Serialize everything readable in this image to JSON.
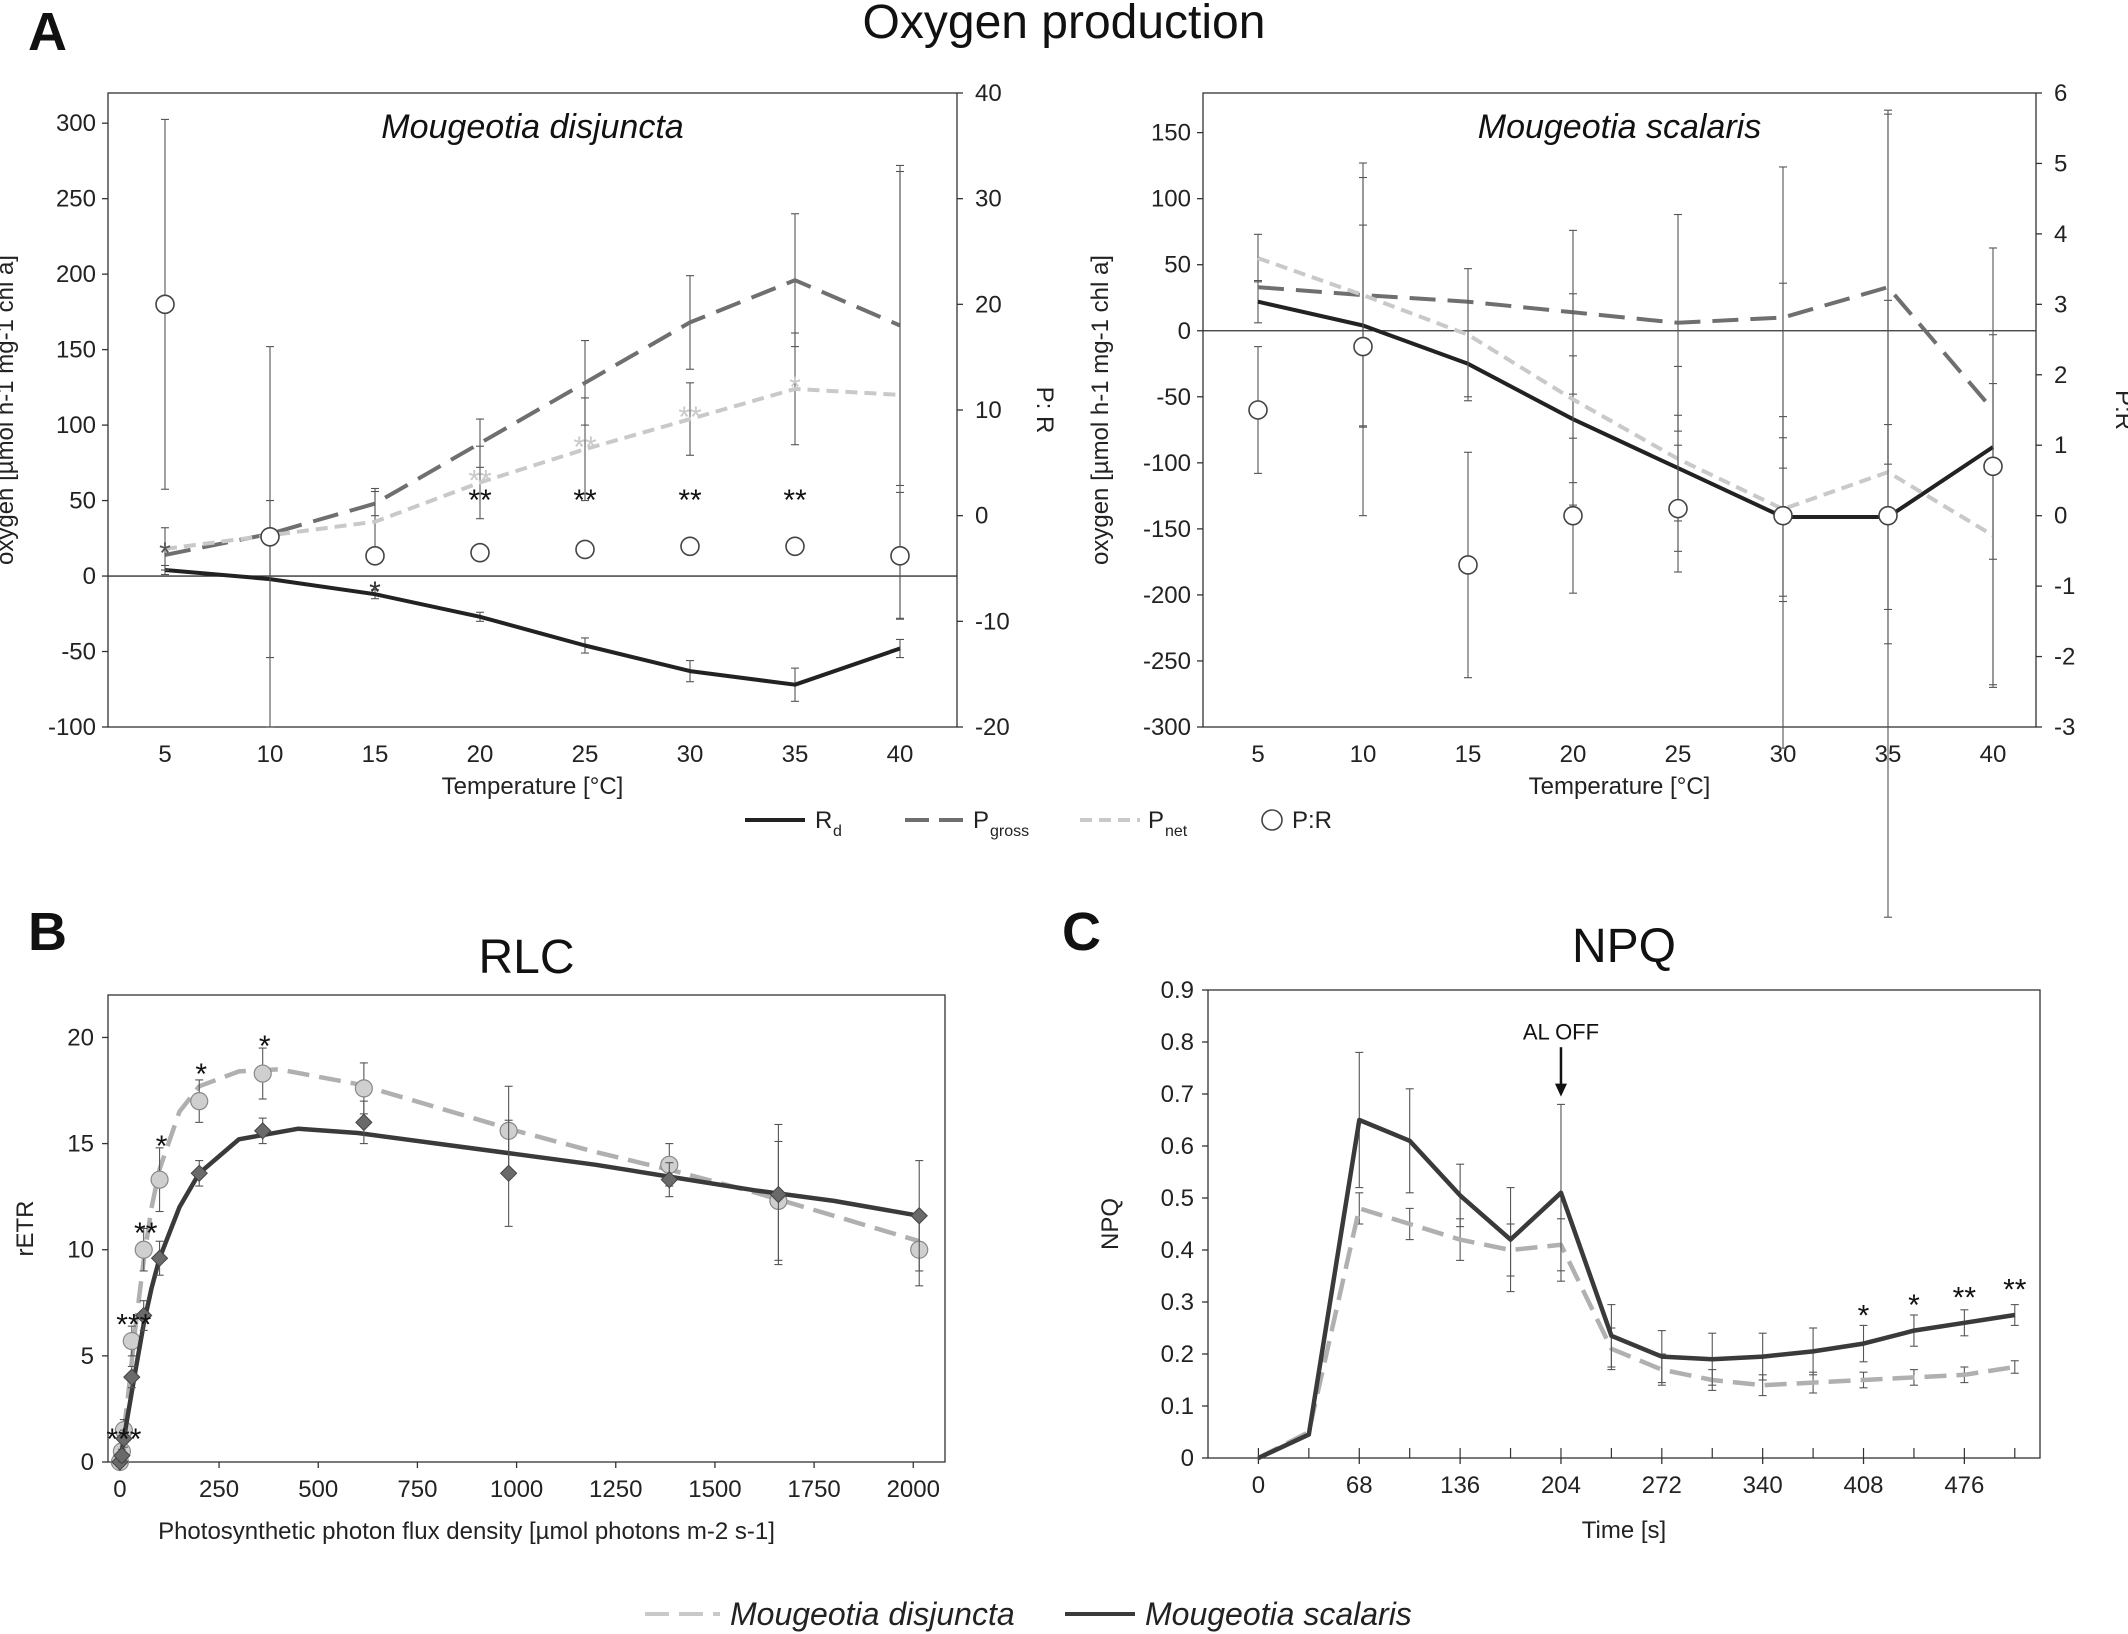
{
  "figure": {
    "panel_a": "A",
    "panel_b": "B",
    "panel_c": "C",
    "title_a": "Oxygen production",
    "legend_a": {
      "rd": "R",
      "rd_sub": "d",
      "pgross": "P",
      "pgross_sub": "gross",
      "pnet": "P",
      "pnet_sub": "net",
      "pr": "P:R"
    },
    "legend_bc": {
      "disjuncta": "Mougeotia disjuncta",
      "scalaris": "Mougeotia scalaris"
    }
  },
  "colors": {
    "rd": "#222222",
    "pgross": "#6f6f6f",
    "pnet": "#c9c9c9",
    "axis": "#333333",
    "disjuncta": "#b0b0b0",
    "scalaris": "#3a3a3a",
    "disjuncta_marker": "#cfcfcf",
    "scalaris_marker": "#6a6a6a"
  },
  "chart_data": [
    {
      "type": "line",
      "subtitle": "Mougeotia disjuncta",
      "xlabel": "Temperature [°C]",
      "ylabel": "oxygen [µmol h-1 mg-1 chl a]",
      "y2label": "P: R",
      "x": [
        5,
        10,
        15,
        20,
        25,
        30,
        35,
        40
      ],
      "ylim": [
        -100,
        320
      ],
      "yticks": [
        -100,
        -50,
        0,
        50,
        100,
        150,
        200,
        250,
        300
      ],
      "y2lim": [
        -20,
        40
      ],
      "y2ticks": [
        -20,
        -10,
        0,
        10,
        20,
        30,
        40
      ],
      "series": [
        {
          "name": "Rd",
          "axis": "left",
          "values": [
            4,
            -2,
            -12,
            -27,
            -46,
            -63,
            -72,
            -48
          ],
          "err": [
            3,
            52,
            3,
            3,
            5,
            7,
            11,
            6
          ]
        },
        {
          "name": "Pgross",
          "axis": "left",
          "values": [
            14,
            28,
            48,
            88,
            128,
            168,
            196,
            166
          ],
          "err": [
            null,
            null,
            8,
            16,
            28,
            31,
            44,
            106
          ]
        },
        {
          "name": "Pnet",
          "axis": "left",
          "values": [
            18,
            27,
            36,
            62,
            84,
            104,
            124,
            120
          ],
          "err": [
            14,
            null,
            22,
            24,
            34,
            24,
            37,
            148
          ]
        },
        {
          "name": "P:R",
          "axis": "right",
          "values": [
            20,
            -2,
            -3.8,
            -3.5,
            -3.2,
            -2.9,
            -2.9,
            -3.8
          ],
          "err": [
            17.5,
            18,
            0,
            0,
            0,
            0,
            0,
            6
          ]
        }
      ],
      "annotations": [
        {
          "x": 5,
          "y": 14,
          "text": "*",
          "color": "#555555"
        },
        {
          "x": 15,
          "y": -12,
          "text": "*",
          "color": "#333333"
        },
        {
          "x": 20,
          "y": 62,
          "text": "**",
          "color": "#c9c9c9"
        },
        {
          "x": 25,
          "y": 84,
          "text": "**",
          "color": "#c9c9c9"
        },
        {
          "x": 30,
          "y": 104,
          "text": "**",
          "color": "#c9c9c9"
        },
        {
          "x": 35,
          "y": 124,
          "text": "*",
          "color": "#c9c9c9"
        },
        {
          "x": 20,
          "y": 49,
          "text": "**",
          "color": "#111111"
        },
        {
          "x": 25,
          "y": 49,
          "text": "**",
          "color": "#111111"
        },
        {
          "x": 30,
          "y": 49,
          "text": "**",
          "color": "#111111"
        },
        {
          "x": 35,
          "y": 49,
          "text": "**",
          "color": "#111111"
        }
      ]
    },
    {
      "type": "line",
      "subtitle": "Mougeotia scalaris",
      "xlabel": "Temperature [°C]",
      "ylabel": "oxygen [µmol h-1 mg-1 chl a]",
      "y2label": "P:R",
      "x": [
        5,
        10,
        15,
        20,
        25,
        30,
        35,
        40
      ],
      "ylim": [
        -300,
        180
      ],
      "yticks": [
        -300,
        -250,
        -200,
        -150,
        -100,
        -50,
        0,
        50,
        100,
        150
      ],
      "y2lim": [
        -3,
        6
      ],
      "y2ticks": [
        -3,
        -2,
        -1,
        0,
        1,
        2,
        3,
        4,
        5,
        6
      ],
      "series": [
        {
          "name": "Rd",
          "axis": "left",
          "values": [
            22,
            4,
            -25,
            -67,
            -104,
            -141,
            -141,
            -88
          ],
          "err": [
            16,
            76,
            25,
            48,
            40,
            60,
            70,
            85
          ]
        },
        {
          "name": "Pgross",
          "axis": "left",
          "values": [
            33,
            27,
            22,
            14,
            6,
            10,
            33,
            -60
          ],
          "err": [
            null,
            null,
            null,
            62,
            82,
            114,
            134,
            null
          ]
        },
        {
          "name": "Pnet",
          "axis": "left",
          "values": [
            55,
            27,
            -3,
            -52,
            -97,
            -135,
            -107,
            -155
          ],
          "err": [
            18,
            100,
            50,
            80,
            70,
            70,
            130,
            115
          ]
        },
        {
          "name": "P:R",
          "axis": "right",
          "values": [
            1.5,
            2.4,
            -0.7,
            0.0,
            0.1,
            0.0,
            0.0,
            0.7
          ],
          "err": [
            0.9,
            2.4,
            1.6,
            1.1,
            0.9,
            3.3,
            5.7,
            3.1
          ]
        }
      ]
    },
    {
      "type": "line",
      "title": "RLC",
      "xlabel": "Photosynthetic photon flux density [µmol photons m-2 s-1]",
      "ylabel": "rETR",
      "xlim": [
        -30,
        2080
      ],
      "xticks": [
        0,
        250,
        500,
        750,
        1000,
        1250,
        1500,
        1750,
        2000
      ],
      "ylim": [
        0,
        22
      ],
      "yticks": [
        0,
        5,
        10,
        15,
        20
      ],
      "series": [
        {
          "name": "Mougeotia disjuncta",
          "x": [
            0,
            5,
            10,
            30,
            60,
            100,
            200,
            360,
            615,
            980,
            1385,
            1660,
            2015
          ],
          "values": [
            0,
            0.5,
            1.5,
            5.7,
            10,
            13.3,
            17,
            18.3,
            17.6,
            15.6,
            14,
            12.3,
            10
          ],
          "err": [
            0,
            0.5,
            0.5,
            0.7,
            1,
            1.5,
            1,
            1.2,
            1.2,
            2.1,
            1,
            2.8,
            1.7
          ],
          "curve": [
            [
              0,
              0
            ],
            [
              20,
              3
            ],
            [
              40,
              6.5
            ],
            [
              60,
              9.5
            ],
            [
              80,
              12
            ],
            [
              100,
              13.8
            ],
            [
              150,
              16.5
            ],
            [
              200,
              17.7
            ],
            [
              300,
              18.4
            ],
            [
              400,
              18.5
            ],
            [
              600,
              17.8
            ],
            [
              800,
              16.7
            ],
            [
              1000,
              15.6
            ],
            [
              1200,
              14.6
            ],
            [
              1400,
              13.7
            ],
            [
              1600,
              12.7
            ],
            [
              1800,
              11.6
            ],
            [
              2015,
              10.4
            ]
          ]
        },
        {
          "name": "Mougeotia scalaris",
          "x": [
            0,
            5,
            10,
            30,
            60,
            100,
            200,
            360,
            615,
            980,
            1385,
            1660,
            2015
          ],
          "values": [
            0,
            0.3,
            1.1,
            4,
            6.9,
            9.6,
            13.6,
            15.6,
            16,
            13.6,
            13.3,
            12.6,
            11.6
          ],
          "err": [
            0,
            0.3,
            0.4,
            0.5,
            0.7,
            0.8,
            0.6,
            0.6,
            1,
            2.5,
            0.8,
            3.3,
            2.6
          ],
          "curve": [
            [
              0,
              0
            ],
            [
              20,
              2.2
            ],
            [
              40,
              4.4
            ],
            [
              60,
              6.5
            ],
            [
              80,
              8.2
            ],
            [
              100,
              9.6
            ],
            [
              150,
              12
            ],
            [
              200,
              13.6
            ],
            [
              300,
              15.2
            ],
            [
              450,
              15.7
            ],
            [
              600,
              15.5
            ],
            [
              800,
              15
            ],
            [
              1000,
              14.5
            ],
            [
              1200,
              14
            ],
            [
              1400,
              13.4
            ],
            [
              1600,
              12.8
            ],
            [
              1800,
              12.3
            ],
            [
              2015,
              11.6
            ]
          ]
        }
      ],
      "annotations": [
        {
          "x": 5,
          "y": 0.9,
          "text": "***"
        },
        {
          "x": 30,
          "y": 6.3,
          "text": "***"
        },
        {
          "x": 60,
          "y": 10.6,
          "text": "**"
        },
        {
          "x": 100,
          "y": 14.7,
          "text": "*"
        },
        {
          "x": 200,
          "y": 18.1,
          "text": "*"
        },
        {
          "x": 360,
          "y": 19.4,
          "text": "*"
        }
      ]
    },
    {
      "type": "line",
      "title": "NPQ",
      "xlabel": "Time [s]",
      "ylabel": "NPQ",
      "xlim": [
        -34,
        527
      ],
      "xticks": [
        0,
        68,
        136,
        204,
        272,
        340,
        408,
        476
      ],
      "ylim": [
        0,
        0.9
      ],
      "yticks": [
        0,
        0.1,
        0.2,
        0.3,
        0.4,
        0.5,
        0.6,
        0.7,
        0.8,
        0.9
      ],
      "series": [
        {
          "name": "Mougeotia disjuncta",
          "x": [
            0,
            34,
            68,
            102,
            136,
            170,
            204,
            238,
            272,
            306,
            340,
            374,
            408,
            442,
            476,
            510
          ],
          "values": [
            0,
            0.05,
            0.48,
            0.45,
            0.42,
            0.4,
            0.41,
            0.21,
            0.17,
            0.15,
            0.14,
            0.145,
            0.15,
            0.155,
            0.16,
            0.175
          ],
          "err": [
            0,
            0,
            0.03,
            0.03,
            0.04,
            0.05,
            0.05,
            0.04,
            0.03,
            0.02,
            0.02,
            0.02,
            0.015,
            0.015,
            0.015,
            0.012
          ]
        },
        {
          "name": "Mougeotia scalaris",
          "x": [
            0,
            34,
            68,
            102,
            136,
            170,
            204,
            238,
            272,
            306,
            340,
            374,
            408,
            442,
            476,
            510
          ],
          "values": [
            0,
            0.045,
            0.65,
            0.61,
            0.505,
            0.42,
            0.51,
            0.235,
            0.195,
            0.19,
            0.195,
            0.205,
            0.22,
            0.245,
            0.26,
            0.275
          ],
          "err": [
            0,
            0,
            0.13,
            0.1,
            0.06,
            0.1,
            0.17,
            0.06,
            0.05,
            0.05,
            0.045,
            0.045,
            0.035,
            0.03,
            0.025,
            0.02
          ]
        }
      ],
      "annotations": [
        {
          "x": 408,
          "y": 0.27,
          "text": "*"
        },
        {
          "x": 442,
          "y": 0.29,
          "text": "*"
        },
        {
          "x": 476,
          "y": 0.305,
          "text": "**"
        },
        {
          "x": 510,
          "y": 0.32,
          "text": "**"
        }
      ],
      "arrow_label": "AL OFF",
      "arrow_x": 204
    }
  ]
}
